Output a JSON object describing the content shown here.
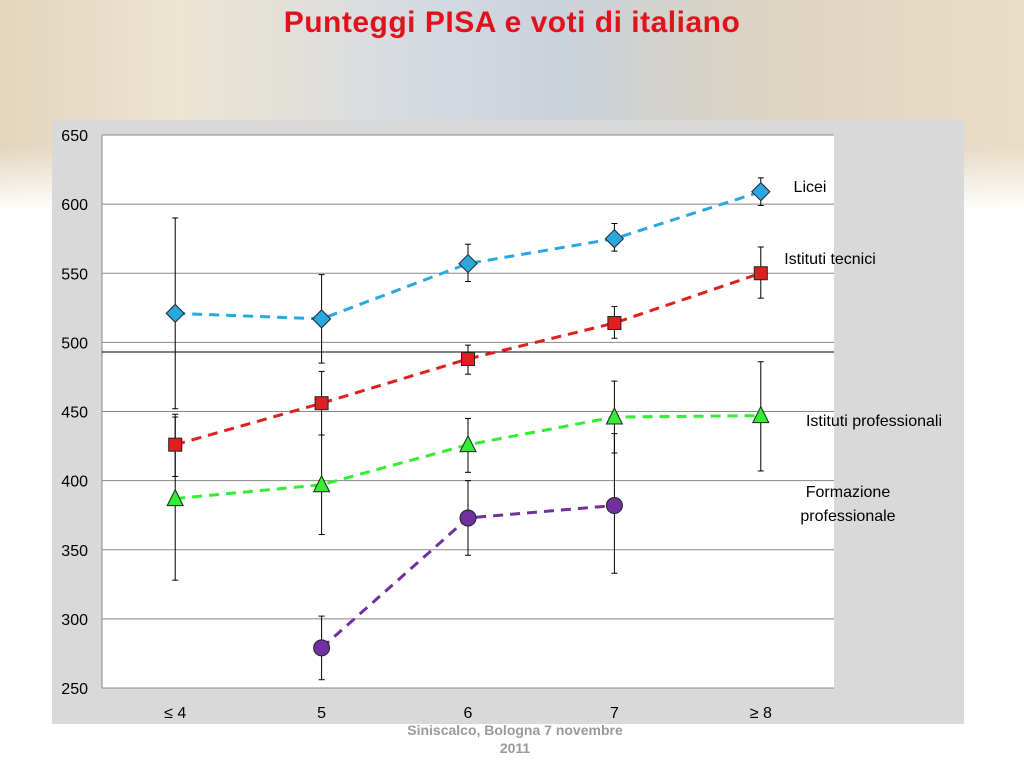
{
  "title": "Punteggi PISA e voti di italiano",
  "footer": {
    "line1": "Siniscalco, Bologna 7 novembre",
    "line2": "2011"
  },
  "colors": {
    "title": "#e0121c",
    "Licei": "#29a8e0",
    "Istituti tecnici": "#e02020",
    "Istituti professionali": "#33ee33",
    "Formazione professionale": "#7030a0"
  },
  "chart_data": {
    "type": "line",
    "categories": [
      "≤ 4",
      "5",
      "6",
      "7",
      "≥ 8"
    ],
    "ylim": [
      250,
      650
    ],
    "yticks": [
      250,
      300,
      350,
      400,
      450,
      500,
      550,
      600,
      650
    ],
    "reference_line": 493,
    "grid": true,
    "series": [
      {
        "name": "Licei",
        "label_lines": [
          "Licei"
        ],
        "marker": "diamond",
        "values": [
          521,
          517,
          557,
          575,
          609
        ],
        "err_low": [
          452,
          485,
          544,
          566,
          599
        ],
        "err_high": [
          590,
          549,
          571,
          586,
          619
        ]
      },
      {
        "name": "Istituti tecnici",
        "label_lines": [
          "Istituti tecnici"
        ],
        "marker": "square",
        "values": [
          426,
          456,
          488,
          514,
          550
        ],
        "err_low": [
          403,
          433,
          477,
          503,
          532
        ],
        "err_high": [
          446,
          479,
          498,
          526,
          569
        ]
      },
      {
        "name": "Istituti professionali",
        "label_lines": [
          "Istituti professionali"
        ],
        "marker": "triangle",
        "values": [
          387,
          397,
          426,
          446,
          447
        ],
        "err_low": [
          328,
          361,
          406,
          420,
          407
        ],
        "err_high": [
          448,
          433,
          445,
          472,
          486
        ]
      },
      {
        "name": "Formazione professionale",
        "label_lines": [
          "Formazione",
          "professionale"
        ],
        "marker": "circle",
        "values": [
          null,
          279,
          373,
          382,
          null
        ],
        "err_low": [
          null,
          256,
          346,
          333,
          null
        ],
        "err_high": [
          null,
          302,
          400,
          434,
          null
        ]
      }
    ]
  }
}
